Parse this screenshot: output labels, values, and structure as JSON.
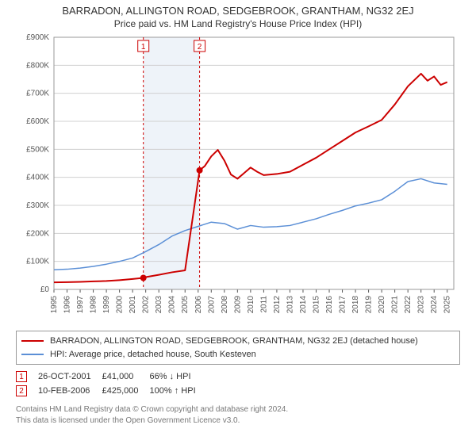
{
  "title_line1": "BARRADON, ALLINGTON ROAD, SEDGEBROOK, GRANTHAM, NG32 2EJ",
  "title_line2": "Price paid vs. HM Land Registry's House Price Index (HPI)",
  "chart": {
    "type": "line",
    "background_color": "#ffffff",
    "grid_color": "#d0d0d0",
    "plot_border_color": "#999999",
    "x_years": [
      1995,
      1996,
      1997,
      1998,
      1999,
      2000,
      2001,
      2002,
      2003,
      2004,
      2005,
      2006,
      2007,
      2008,
      2009,
      2010,
      2011,
      2012,
      2013,
      2014,
      2015,
      2016,
      2017,
      2018,
      2019,
      2020,
      2021,
      2022,
      2023,
      2024,
      2025
    ],
    "x_range": [
      1995,
      2025.5
    ],
    "y_range": [
      0,
      900000
    ],
    "y_ticks": [
      0,
      100000,
      200000,
      300000,
      400000,
      500000,
      600000,
      700000,
      800000,
      900000
    ],
    "y_tick_labels": [
      "£0",
      "£100K",
      "£200K",
      "£300K",
      "£400K",
      "£500K",
      "£600K",
      "£700K",
      "£800K",
      "£900K"
    ],
    "highlight_band": {
      "x_start": 2001.82,
      "x_end": 2006.11,
      "fill": "#eef3f9"
    },
    "series": [
      {
        "name": "hpi",
        "color": "#5b8fd6",
        "width": 1.5,
        "points": [
          [
            1995,
            70000
          ],
          [
            1996,
            72000
          ],
          [
            1997,
            76000
          ],
          [
            1998,
            82000
          ],
          [
            1999,
            90000
          ],
          [
            2000,
            100000
          ],
          [
            2001,
            112000
          ],
          [
            2002,
            135000
          ],
          [
            2003,
            160000
          ],
          [
            2004,
            190000
          ],
          [
            2005,
            210000
          ],
          [
            2006,
            225000
          ],
          [
            2007,
            240000
          ],
          [
            2008,
            235000
          ],
          [
            2009,
            215000
          ],
          [
            2010,
            228000
          ],
          [
            2011,
            222000
          ],
          [
            2012,
            224000
          ],
          [
            2013,
            228000
          ],
          [
            2014,
            240000
          ],
          [
            2015,
            252000
          ],
          [
            2016,
            268000
          ],
          [
            2017,
            282000
          ],
          [
            2018,
            298000
          ],
          [
            2019,
            308000
          ],
          [
            2020,
            320000
          ],
          [
            2021,
            350000
          ],
          [
            2022,
            385000
          ],
          [
            2023,
            395000
          ],
          [
            2024,
            380000
          ],
          [
            2025,
            375000
          ]
        ]
      },
      {
        "name": "property",
        "color": "#cc0000",
        "width": 2,
        "points": [
          [
            1995,
            25000
          ],
          [
            1996,
            26000
          ],
          [
            1997,
            27000
          ],
          [
            1998,
            28500
          ],
          [
            1999,
            30000
          ],
          [
            2000,
            33000
          ],
          [
            2001,
            37000
          ],
          [
            2001.82,
            41000
          ],
          [
            2002,
            44000
          ],
          [
            2003,
            52000
          ],
          [
            2004,
            61000
          ],
          [
            2005,
            68000
          ],
          [
            2006.11,
            425000
          ],
          [
            2006.5,
            440000
          ],
          [
            2007,
            475000
          ],
          [
            2007.5,
            498000
          ],
          [
            2008,
            460000
          ],
          [
            2008.5,
            410000
          ],
          [
            2009,
            395000
          ],
          [
            2009.5,
            415000
          ],
          [
            2010,
            435000
          ],
          [
            2010.5,
            420000
          ],
          [
            2011,
            408000
          ],
          [
            2012,
            412000
          ],
          [
            2013,
            420000
          ],
          [
            2014,
            445000
          ],
          [
            2015,
            470000
          ],
          [
            2016,
            500000
          ],
          [
            2017,
            530000
          ],
          [
            2018,
            560000
          ],
          [
            2019,
            582000
          ],
          [
            2020,
            605000
          ],
          [
            2021,
            660000
          ],
          [
            2022,
            725000
          ],
          [
            2023,
            770000
          ],
          [
            2023.5,
            745000
          ],
          [
            2024,
            760000
          ],
          [
            2024.5,
            730000
          ],
          [
            2025,
            740000
          ]
        ]
      }
    ],
    "sale_markers": [
      {
        "label": "1",
        "x": 2001.82,
        "y": 41000,
        "line_color": "#cc0000",
        "line_dash": "3,3"
      },
      {
        "label": "2",
        "x": 2006.11,
        "y": 425000,
        "line_color": "#cc0000",
        "line_dash": "3,3"
      }
    ],
    "sale_dot": {
      "fill": "#cc0000",
      "r": 4
    },
    "badge": {
      "border": "#cc0000",
      "fill": "#ffffff",
      "text": "#cc0000",
      "size": 14
    },
    "axis_fontsize": 10,
    "title_fontsize": 13
  },
  "legend": {
    "series1": {
      "label": "BARRADON, ALLINGTON ROAD, SEDGEBROOK, GRANTHAM, NG32 2EJ (detached house)",
      "color": "#cc0000"
    },
    "series2": {
      "label": "HPI: Average price, detached house, South Kesteven",
      "color": "#5b8fd6"
    }
  },
  "events": [
    {
      "badge": "1",
      "date": "26-OCT-2001",
      "price": "£41,000",
      "delta": "66% ↓ HPI"
    },
    {
      "badge": "2",
      "date": "10-FEB-2006",
      "price": "£425,000",
      "delta": "100% ↑ HPI"
    }
  ],
  "footer": {
    "line1": "Contains HM Land Registry data © Crown copyright and database right 2024.",
    "line2": "This data is licensed under the Open Government Licence v3.0."
  }
}
